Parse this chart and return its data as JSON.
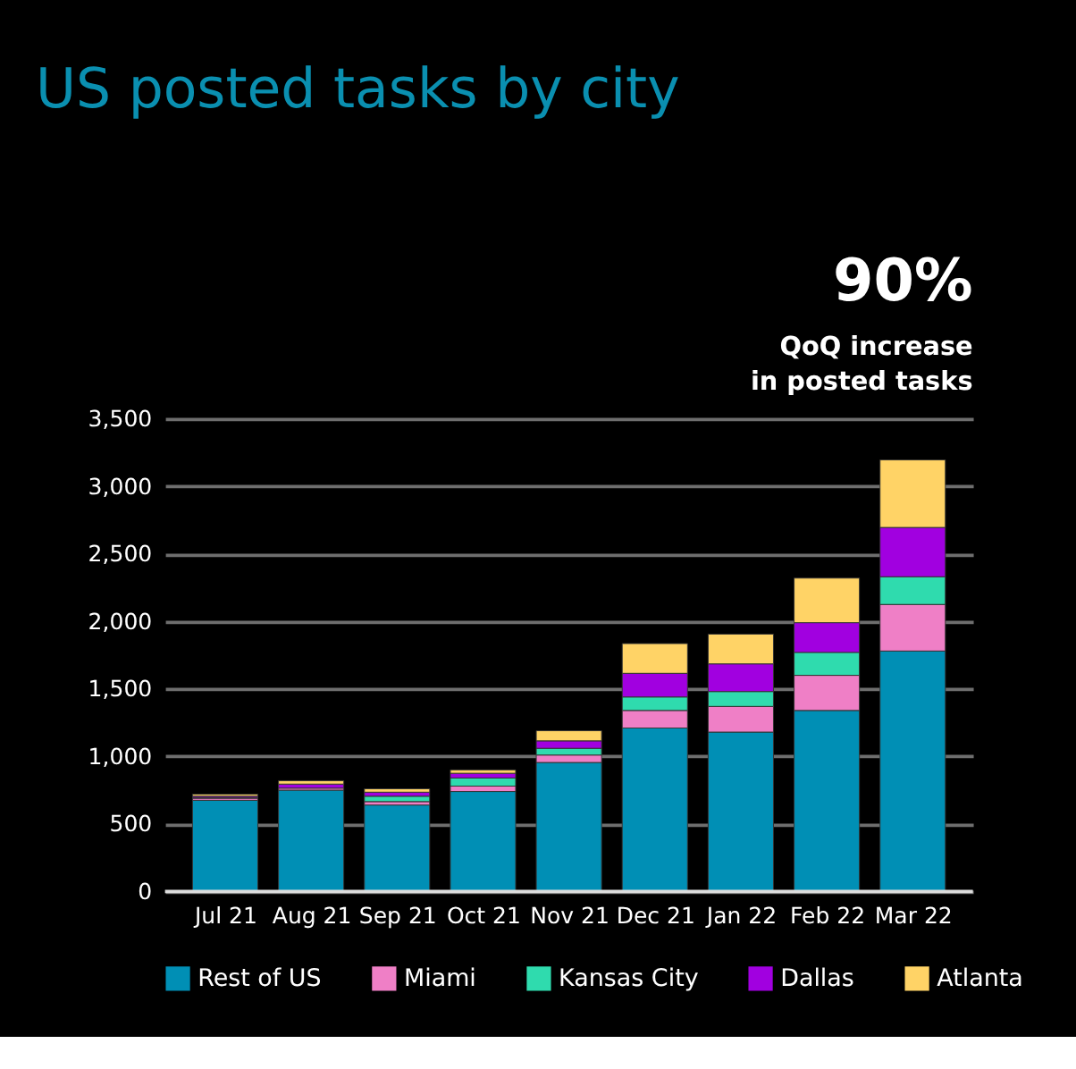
{
  "chart_data": {
    "type": "bar",
    "title": "US posted tasks by city",
    "annotations": [
      "90%",
      "QoQ increase",
      "in posted tasks"
    ],
    "categories": [
      "Jul 21",
      "Aug 21",
      "Sep 21",
      "Oct 21",
      "Nov 21",
      "Dec 21",
      "Jan 22",
      "Feb 22",
      "Mar 22"
    ],
    "stacked": true,
    "series": [
      {
        "name": "Rest of US",
        "color": "#008fb5",
        "values": [
          675,
          750,
          640,
          740,
          955,
          1210,
          1180,
          1340,
          1780
        ]
      },
      {
        "name": "Miami",
        "color": "#ef7fc6",
        "values": [
          15,
          15,
          25,
          40,
          55,
          130,
          190,
          260,
          345
        ]
      },
      {
        "name": "Kansas City",
        "color": "#2fdbae",
        "values": [
          5,
          null,
          40,
          60,
          50,
          100,
          110,
          170,
          205
        ]
      },
      {
        "name": "Dallas",
        "color": "#a100e0",
        "values": [
          10,
          30,
          30,
          35,
          55,
          175,
          205,
          220,
          365
        ]
      },
      {
        "name": "Atlanta",
        "color": "#ffd366",
        "values": [
          15,
          25,
          25,
          25,
          75,
          220,
          220,
          330,
          500
        ]
      }
    ],
    "ylim": [
      0,
      3500
    ],
    "yticks": [
      0,
      500,
      {
        "value": 1000,
        "label": "1,000"
      },
      {
        "value": 1500,
        "label": "1,500"
      },
      {
        "value": 2000,
        "label": "2,000"
      },
      {
        "value": 2500,
        "label": "2,500"
      },
      {
        "value": 3000,
        "label": "3,000"
      },
      {
        "value": 3500,
        "label": "3,500"
      }
    ],
    "grid": "y",
    "legend": "bottom"
  }
}
